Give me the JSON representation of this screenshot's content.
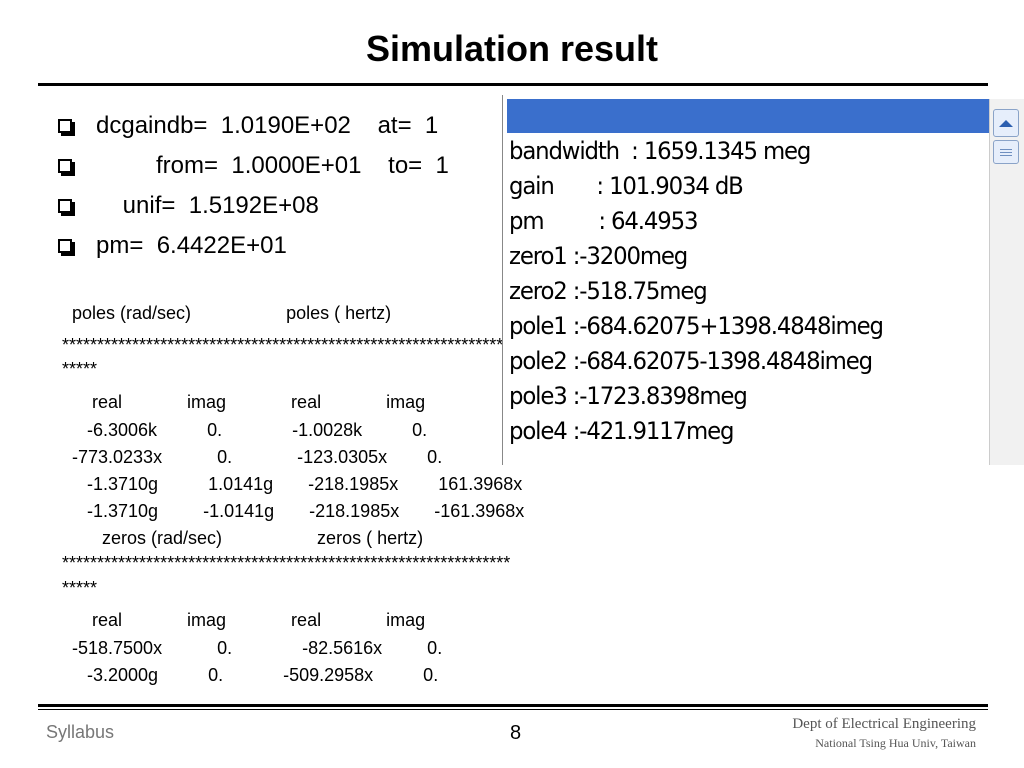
{
  "title": "Simulation result",
  "bullets": [
    "dcgaindb=  1.0190E+02    at=  1",
    "         from=  1.0000E+01    to=  1",
    "    unif=  1.5192E+08",
    "pm=  6.4422E+01"
  ],
  "poles": {
    "header": "  poles (rad/sec)                   poles ( hertz)",
    "stars": "****************************************************************",
    "stars2": "*****",
    "cols": "      real             imag             real             imag",
    "rows": [
      "     -6.3006k          0.              -1.0028k          0.",
      "  -773.0233x           0.             -123.0305x        0.",
      "     -1.3710g          1.0141g       -218.1985x        161.3968x",
      "     -1.3710g         -1.0141g       -218.1985x       -161.3968x"
    ]
  },
  "zeros": {
    "header": "        zeros (rad/sec)                   zeros ( hertz)",
    "stars": "****************************************************************",
    "stars2": "*****",
    "cols": "      real             imag             real             imag",
    "rows": [
      "  -518.7500x           0.              -82.5616x         0.",
      "     -3.2000g          0.            -509.2958x          0."
    ]
  },
  "popup": {
    "lines": [
      "bandwidth  : 1659.1345 meg",
      "gain       : 101.9034 dB",
      "pm         : 64.4953",
      "zero1 :-3200meg",
      "zero2 :-518.75meg",
      "pole1 :-684.62075+1398.4848imeg",
      "pole2 :-684.62075-1398.4848imeg",
      "pole3 :-1723.8398meg",
      "pole4 :-421.9117meg"
    ],
    "accent": "#3a6fcc"
  },
  "footer": {
    "left": "Syllabus",
    "page": "8",
    "dept": "Dept of Electrical Engineering",
    "univ": "National Tsing Hua Univ, Taiwan"
  }
}
